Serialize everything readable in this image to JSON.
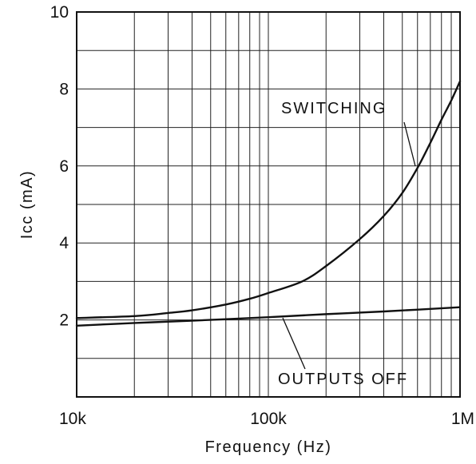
{
  "chart_data": {
    "type": "line",
    "x_scale": "log",
    "xlim": [
      10000,
      1000000
    ],
    "ylim": [
      0,
      10
    ],
    "grid": true,
    "xlabel": "Frequency (Hz)",
    "ylabel": "Icc (mA)",
    "x_tick_labels": [
      {
        "value": 10000,
        "label": "10k"
      },
      {
        "value": 100000,
        "label": "100k"
      },
      {
        "value": 1000000,
        "label": "1M"
      }
    ],
    "y_tick_labels": [
      {
        "value": 2,
        "label": "2"
      },
      {
        "value": 4,
        "label": "4"
      },
      {
        "value": 6,
        "label": "6"
      },
      {
        "value": 8,
        "label": "8"
      },
      {
        "value": 10,
        "label": "10"
      }
    ],
    "series": [
      {
        "name": "SWITCHING",
        "color": "#111111",
        "x": [
          10000,
          20000,
          30000,
          40000,
          60000,
          80000,
          100000,
          150000,
          200000,
          300000,
          400000,
          500000,
          600000,
          700000,
          800000,
          900000,
          1000000
        ],
        "y": [
          2.05,
          2.1,
          2.18,
          2.25,
          2.4,
          2.55,
          2.7,
          3.0,
          3.4,
          4.1,
          4.7,
          5.3,
          5.95,
          6.6,
          7.2,
          7.7,
          8.2
        ]
      },
      {
        "name": "OUTPUTS OFF",
        "color": "#111111",
        "x": [
          10000,
          20000,
          40000,
          100000,
          200000,
          400000,
          1000000
        ],
        "y": [
          1.85,
          1.92,
          1.98,
          2.07,
          2.15,
          2.22,
          2.33
        ]
      }
    ]
  }
}
